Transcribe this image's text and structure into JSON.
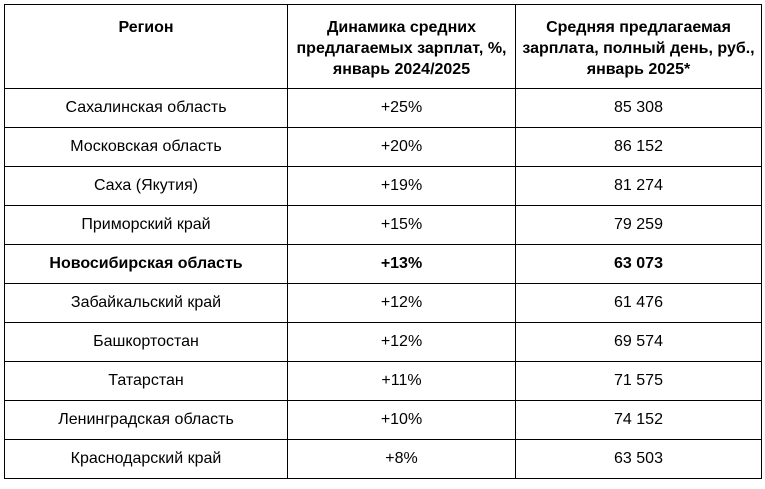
{
  "table": {
    "headers": [
      "Регион",
      "Динамика средних предлагаемых зарплат, %, январь 2024/2025",
      "Средняя предлагаемая зарплата, полный день, руб., январь 2025*"
    ],
    "rows": [
      {
        "region": "Сахалинская область",
        "dynamics": "+25%",
        "salary": "85 308",
        "bold": false
      },
      {
        "region": "Московская область",
        "dynamics": "+20%",
        "salary": "86 152",
        "bold": false
      },
      {
        "region": "Саха (Якутия)",
        "dynamics": "+19%",
        "salary": "81 274",
        "bold": false
      },
      {
        "region": "Приморский край",
        "dynamics": "+15%",
        "salary": "79 259",
        "bold": false
      },
      {
        "region": "Новосибирская область",
        "dynamics": "+13%",
        "salary": "63 073",
        "bold": true
      },
      {
        "region": "Забайкальский край",
        "dynamics": "+12%",
        "salary": "61 476",
        "bold": false
      },
      {
        "region": "Башкортостан",
        "dynamics": "+12%",
        "salary": "69 574",
        "bold": false
      },
      {
        "region": "Татарстан",
        "dynamics": "+11%",
        "salary": "71 575",
        "bold": false
      },
      {
        "region": "Ленинградская область",
        "dynamics": "+10%",
        "salary": "74 152",
        "bold": false
      },
      {
        "region": "Краснодарский край",
        "dynamics": "+8%",
        "salary": "63 503",
        "bold": false
      }
    ]
  }
}
